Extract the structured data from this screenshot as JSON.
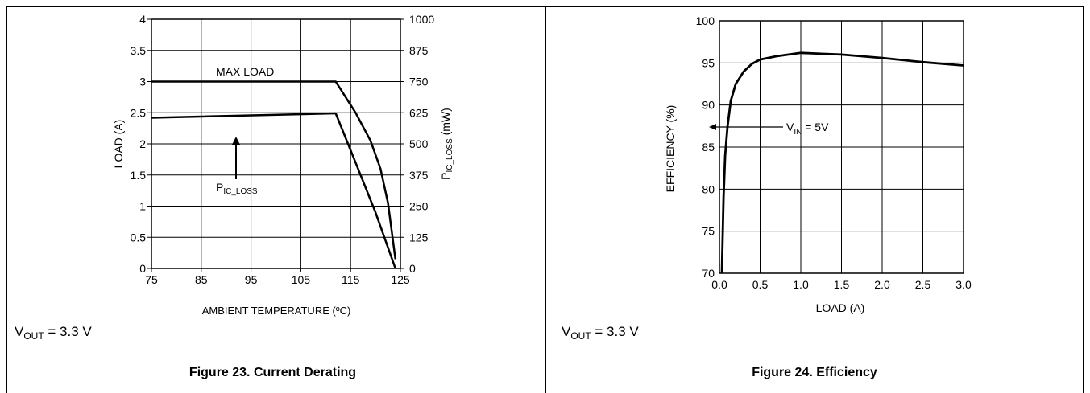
{
  "chart_data": [
    {
      "type": "line",
      "xlabel": "AMBIENT TEMPERATURE (ºC)",
      "ylabel": "LOAD (A)",
      "y2label_main": "P",
      "y2label_sub": "IC_LOSS",
      "y2label_unit": " (mW)",
      "xlim": [
        75,
        125
      ],
      "ylim": [
        0,
        4
      ],
      "y2lim": [
        0,
        1000
      ],
      "grid": true,
      "x_ticks": [
        "75",
        "85",
        "95",
        "105",
        "115",
        "125"
      ],
      "y_ticks": [
        "0",
        "0.5",
        "1",
        "1.5",
        "2",
        "2.5",
        "3",
        "3.5",
        "4"
      ],
      "y2_ticks": [
        "0",
        "125",
        "250",
        "375",
        "500",
        "625",
        "750",
        "875",
        "1000"
      ],
      "series": [
        {
          "name": "MAX LOAD",
          "x": [
            75,
            112,
            116,
            119,
            121,
            122.5,
            124
          ],
          "y": [
            3.0,
            3.0,
            2.5,
            2.05,
            1.6,
            1.05,
            0.15
          ]
        },
        {
          "x": [
            75,
            112,
            116,
            120,
            124
          ],
          "y": [
            2.42,
            2.49,
            1.7,
            0.9,
            0.0
          ]
        }
      ],
      "annotations": {
        "max_load": "MAX LOAD",
        "pic_main": "P",
        "pic_sub": "IC_LOSS"
      }
    },
    {
      "type": "line",
      "xlabel": "LOAD (A)",
      "ylabel": "EFFICIENCY (%)",
      "xlim": [
        0,
        3
      ],
      "ylim": [
        70,
        100
      ],
      "grid": true,
      "x_ticks": [
        "0.0",
        "0.5",
        "1.0",
        "1.5",
        "2.0",
        "2.5",
        "3.0"
      ],
      "y_ticks": [
        "70",
        "75",
        "80",
        "85",
        "90",
        "95",
        "100"
      ],
      "series": [
        {
          "x": [
            0.03,
            0.05,
            0.07,
            0.1,
            0.14,
            0.2,
            0.3,
            0.4,
            0.5,
            0.7,
            1.0,
            1.5,
            2.0,
            2.5,
            3.0
          ],
          "y": [
            70,
            79,
            84,
            87.5,
            90.5,
            92.5,
            94,
            94.9,
            95.4,
            95.8,
            96.2,
            96.0,
            95.6,
            95.1,
            94.7
          ]
        }
      ],
      "annotations": {
        "vin_main": "V",
        "vin_sub": "IN",
        "vin_rest": " = 5V"
      }
    }
  ],
  "panels": {
    "left": {
      "note_main": "V",
      "note_sub": "OUT",
      "note_rest": " = 3.3 V",
      "caption": "Figure 23. Current Derating"
    },
    "right": {
      "note_main": "V",
      "note_sub": "OUT",
      "note_rest": " = 3.3 V",
      "caption": "Figure 24. Efficiency"
    }
  }
}
